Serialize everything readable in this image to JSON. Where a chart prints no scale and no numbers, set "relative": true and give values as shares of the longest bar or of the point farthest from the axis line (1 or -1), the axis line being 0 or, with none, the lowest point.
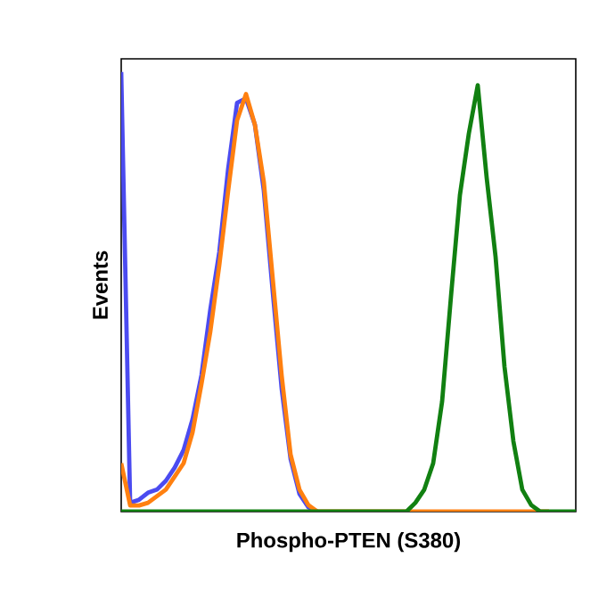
{
  "chart_data": {
    "type": "line",
    "xlabel": "Phospho-PTEN (S380)",
    "ylabel": "Events",
    "relative": true,
    "categories": [
      null,
      null,
      null,
      null,
      null,
      null,
      null,
      null,
      null,
      null,
      null,
      null,
      null,
      null,
      null,
      null,
      null,
      null,
      null,
      null,
      null,
      null,
      null,
      null,
      null,
      null,
      null,
      null,
      null,
      null,
      null,
      null,
      null,
      null,
      null,
      null,
      null,
      null,
      null,
      null,
      null,
      null,
      null,
      null,
      null,
      null,
      null,
      null,
      null,
      null,
      null,
      null
    ],
    "series": [
      {
        "color": "#4b4bf0",
        "values": [
          1.0,
          0.02,
          0.027,
          0.043,
          0.05,
          0.07,
          0.1,
          0.14,
          0.21,
          0.31,
          0.46,
          0.59,
          0.78,
          0.93,
          0.94,
          0.88,
          0.73,
          0.5,
          0.28,
          0.12,
          0.04,
          0.01,
          0,
          null,
          null,
          null,
          null,
          null,
          null,
          null,
          null,
          null,
          null,
          null,
          null,
          null,
          null,
          null,
          null,
          null,
          null,
          null,
          null,
          null,
          null,
          null,
          null,
          null,
          null,
          null,
          null,
          null
        ]
      },
      {
        "color": "#ff8010",
        "values": [
          0.11,
          0.014,
          0.014,
          0.02,
          0.035,
          0.05,
          0.08,
          0.11,
          0.18,
          0.29,
          0.41,
          0.56,
          0.73,
          0.89,
          0.95,
          0.88,
          0.75,
          0.53,
          0.31,
          0.13,
          0.05,
          0.015,
          0,
          0,
          0,
          0,
          0,
          0,
          0,
          0,
          0,
          0,
          0,
          0,
          0,
          0,
          0,
          0,
          0,
          0,
          0,
          0,
          0,
          0,
          0,
          0,
          0,
          0,
          0,
          null,
          null,
          null
        ]
      },
      {
        "color": "#118011",
        "values": [
          0,
          0,
          0,
          0,
          0,
          0,
          0,
          0,
          0,
          0,
          0,
          0,
          0,
          0,
          0,
          0,
          0,
          0,
          0,
          0,
          0,
          0,
          0,
          0,
          0,
          0,
          0,
          0,
          0,
          0,
          0,
          0,
          0,
          0.02,
          0.05,
          0.11,
          0.25,
          0.49,
          0.72,
          0.86,
          0.97,
          0.76,
          0.58,
          0.33,
          0.16,
          0.05,
          0.015,
          0,
          0,
          0,
          0,
          0
        ]
      }
    ]
  }
}
